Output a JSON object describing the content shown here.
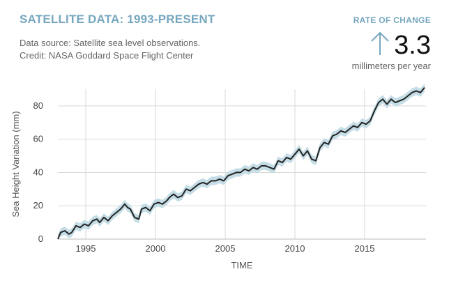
{
  "header": {
    "title": "SATELLITE DATA: 1993-PRESENT",
    "source_line1": "Data source: Satellite sea level observations.",
    "source_line2": "Credit: NASA Goddard Space Flight Center"
  },
  "rate": {
    "title": "RATE OF CHANGE",
    "value": "3.3",
    "unit": "millimeters per year",
    "icon": "arrow-up-icon"
  },
  "colors": {
    "accent": "#76a7bf",
    "line": "#222222",
    "band": "#c5dde6",
    "grid": "#d9d9d9"
  },
  "chart_data": {
    "type": "line",
    "title": "",
    "xlabel": "TIME",
    "ylabel": "Sea Height Variation (mm)",
    "xlim": [
      1993,
      2019.4
    ],
    "ylim": [
      0,
      90
    ],
    "x_ticks": [
      1995,
      2000,
      2005,
      2010,
      2015
    ],
    "y_ticks": [
      0,
      20,
      40,
      60,
      80
    ],
    "grid": true,
    "uncertainty_band_mm": 2.5,
    "series": [
      {
        "x": [
          1993.0,
          1993.2,
          1993.5,
          1993.8,
          1994.0,
          1994.3,
          1994.6,
          1994.9,
          1995.2,
          1995.5,
          1995.8,
          1996.0,
          1996.3,
          1996.6,
          1996.9,
          1997.2,
          1997.5,
          1997.8,
          1998.0,
          1998.2,
          1998.5,
          1998.8,
          1999.0,
          1999.3,
          1999.6,
          1999.9,
          2000.2,
          2000.5,
          2000.8,
          2001.0,
          2001.3,
          2001.6,
          2001.9,
          2002.2,
          2002.5,
          2002.8,
          2003.1,
          2003.4,
          2003.7,
          2004.0,
          2004.3,
          2004.6,
          2004.9,
          2005.2,
          2005.5,
          2005.8,
          2006.1,
          2006.4,
          2006.7,
          2007.0,
          2007.3,
          2007.6,
          2007.9,
          2008.2,
          2008.5,
          2008.8,
          2009.1,
          2009.4,
          2009.7,
          2010.0,
          2010.3,
          2010.6,
          2010.9,
          2011.2,
          2011.5,
          2011.8,
          2012.1,
          2012.4,
          2012.7,
          2013.0,
          2013.3,
          2013.6,
          2013.9,
          2014.2,
          2014.5,
          2014.8,
          2015.1,
          2015.4,
          2015.7,
          2016.0,
          2016.3,
          2016.6,
          2016.9,
          2017.2,
          2017.5,
          2017.8,
          2018.1,
          2018.4,
          2018.7,
          2019.0,
          2019.3
        ],
        "values": [
          0,
          4,
          5,
          3,
          4,
          8,
          7,
          9,
          8,
          11,
          12,
          10,
          13,
          11,
          14,
          16,
          18,
          21,
          19,
          18,
          13,
          12,
          18,
          19,
          17,
          21,
          22,
          21,
          23,
          25,
          27,
          25,
          26,
          30,
          29,
          31,
          33,
          34,
          33,
          35,
          35,
          36,
          35,
          38,
          39,
          40,
          40,
          42,
          41,
          43,
          42,
          44,
          44,
          43,
          42,
          47,
          46,
          49,
          48,
          51,
          54,
          50,
          53,
          48,
          47,
          55,
          58,
          57,
          62,
          63,
          65,
          64,
          66,
          68,
          67,
          70,
          69,
          71,
          77,
          82,
          84,
          81,
          84,
          82,
          83,
          84,
          86,
          88,
          89,
          88,
          91
        ]
      }
    ]
  }
}
